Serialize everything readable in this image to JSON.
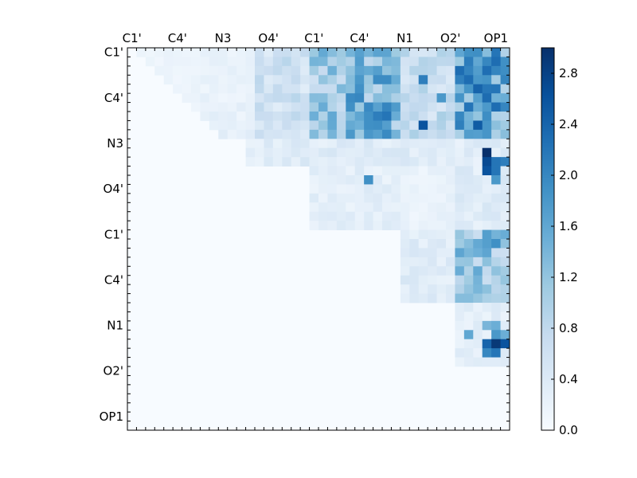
{
  "chart_data": {
    "type": "heatmap",
    "title": "",
    "xlabel": "",
    "ylabel": "",
    "x_tick_labels": [
      "C1'",
      "C4'",
      "N3",
      "O4'",
      "C1'",
      "C4'",
      "N1",
      "O2'",
      "OP1"
    ],
    "y_tick_labels": [
      "C1'",
      "C4'",
      "N3",
      "O4'",
      "C1'",
      "C4'",
      "N1",
      "O2'",
      "OP1"
    ],
    "tick_axis_position": "x ticks on top, y ticks on left",
    "grid_size": 42,
    "colormap": "Blues",
    "color_range": [
      0.0,
      3.0
    ],
    "colorbar": {
      "position": "right",
      "ticks": [
        "0.0",
        "0.4",
        "0.8",
        "1.2",
        "1.6",
        "2.0",
        "2.4",
        "2.8"
      ],
      "tick_values": [
        0.0,
        0.4,
        0.8,
        1.2,
        1.6,
        2.0,
        2.4,
        2.8
      ]
    },
    "matrix_shape": "upper-triangular, lower triangle is 0",
    "regions": [
      {
        "rows": [
          0,
          6
        ],
        "cols": [
          0,
          6
        ],
        "value": 0.15
      },
      {
        "rows": [
          0,
          6
        ],
        "cols": [
          6,
          14
        ],
        "value": 0.2
      },
      {
        "rows": [
          6,
          10
        ],
        "cols": [
          6,
          14
        ],
        "value": 0.25
      },
      {
        "rows": [
          0,
          10
        ],
        "cols": [
          14,
          20
        ],
        "value": 0.6
      },
      {
        "rows": [
          0,
          10
        ],
        "cols": [
          20,
          24
        ],
        "value": 1.1
      },
      {
        "rows": [
          0,
          10
        ],
        "cols": [
          24,
          30
        ],
        "value": 1.4
      },
      {
        "rows": [
          0,
          10
        ],
        "cols": [
          30,
          36
        ],
        "value": 0.7
      },
      {
        "rows": [
          0,
          10
        ],
        "cols": [
          36,
          42
        ],
        "value": 1.6
      },
      {
        "rows": [
          9,
          13
        ],
        "cols": [
          13,
          42
        ],
        "value": 0.35
      },
      {
        "rows": [
          13,
          20
        ],
        "cols": [
          20,
          30
        ],
        "value": 0.3
      },
      {
        "rows": [
          13,
          20
        ],
        "cols": [
          30,
          36
        ],
        "value": 0.2
      },
      {
        "rows": [
          13,
          20
        ],
        "cols": [
          36,
          42
        ],
        "value": 0.35
      },
      {
        "rows": [
          20,
          28
        ],
        "cols": [
          30,
          36
        ],
        "value": 0.35
      },
      {
        "rows": [
          20,
          28
        ],
        "cols": [
          36,
          42
        ],
        "value": 1.2
      },
      {
        "rows": [
          28,
          35
        ],
        "cols": [
          36,
          42
        ],
        "value": 0.3
      }
    ],
    "hot_spots": [
      {
        "row": 0,
        "col": 40,
        "value": 2.2
      },
      {
        "row": 1,
        "col": 39,
        "value": 2.0
      },
      {
        "row": 1,
        "col": 40,
        "value": 2.3
      },
      {
        "row": 1,
        "col": 41,
        "value": 1.9
      },
      {
        "row": 2,
        "col": 27,
        "value": 1.7
      },
      {
        "row": 3,
        "col": 25,
        "value": 1.8
      },
      {
        "row": 3,
        "col": 32,
        "value": 2.1
      },
      {
        "row": 4,
        "col": 38,
        "value": 2.4
      },
      {
        "row": 4,
        "col": 40,
        "value": 2.2
      },
      {
        "row": 5,
        "col": 34,
        "value": 1.8
      },
      {
        "row": 5,
        "col": 38,
        "value": 1.7
      },
      {
        "row": 7,
        "col": 27,
        "value": 2.1
      },
      {
        "row": 7,
        "col": 28,
        "value": 2.2
      },
      {
        "row": 8,
        "col": 26,
        "value": 1.9
      },
      {
        "row": 8,
        "col": 32,
        "value": 2.6
      },
      {
        "row": 8,
        "col": 38,
        "value": 2.5
      },
      {
        "row": 9,
        "col": 24,
        "value": 1.8
      },
      {
        "row": 11,
        "col": 39,
        "value": 3.0
      },
      {
        "row": 12,
        "col": 39,
        "value": 2.7
      },
      {
        "row": 12,
        "col": 40,
        "value": 2.2
      },
      {
        "row": 12,
        "col": 41,
        "value": 2.1
      },
      {
        "row": 13,
        "col": 39,
        "value": 2.6
      },
      {
        "row": 13,
        "col": 40,
        "value": 2.2
      },
      {
        "row": 14,
        "col": 26,
        "value": 1.9
      },
      {
        "row": 14,
        "col": 40,
        "value": 1.8
      },
      {
        "row": 21,
        "col": 37,
        "value": 1.3
      },
      {
        "row": 21,
        "col": 39,
        "value": 1.7
      },
      {
        "row": 21,
        "col": 40,
        "value": 1.9
      },
      {
        "row": 30,
        "col": 39,
        "value": 1.4
      },
      {
        "row": 30,
        "col": 40,
        "value": 1.5
      },
      {
        "row": 31,
        "col": 40,
        "value": 1.8
      },
      {
        "row": 31,
        "col": 41,
        "value": 1.5
      },
      {
        "row": 31,
        "col": 37,
        "value": 1.6
      },
      {
        "row": 32,
        "col": 39,
        "value": 2.4
      },
      {
        "row": 32,
        "col": 40,
        "value": 2.9
      },
      {
        "row": 32,
        "col": 41,
        "value": 2.6
      },
      {
        "row": 33,
        "col": 39,
        "value": 2.0
      },
      {
        "row": 33,
        "col": 40,
        "value": 2.2
      }
    ]
  }
}
